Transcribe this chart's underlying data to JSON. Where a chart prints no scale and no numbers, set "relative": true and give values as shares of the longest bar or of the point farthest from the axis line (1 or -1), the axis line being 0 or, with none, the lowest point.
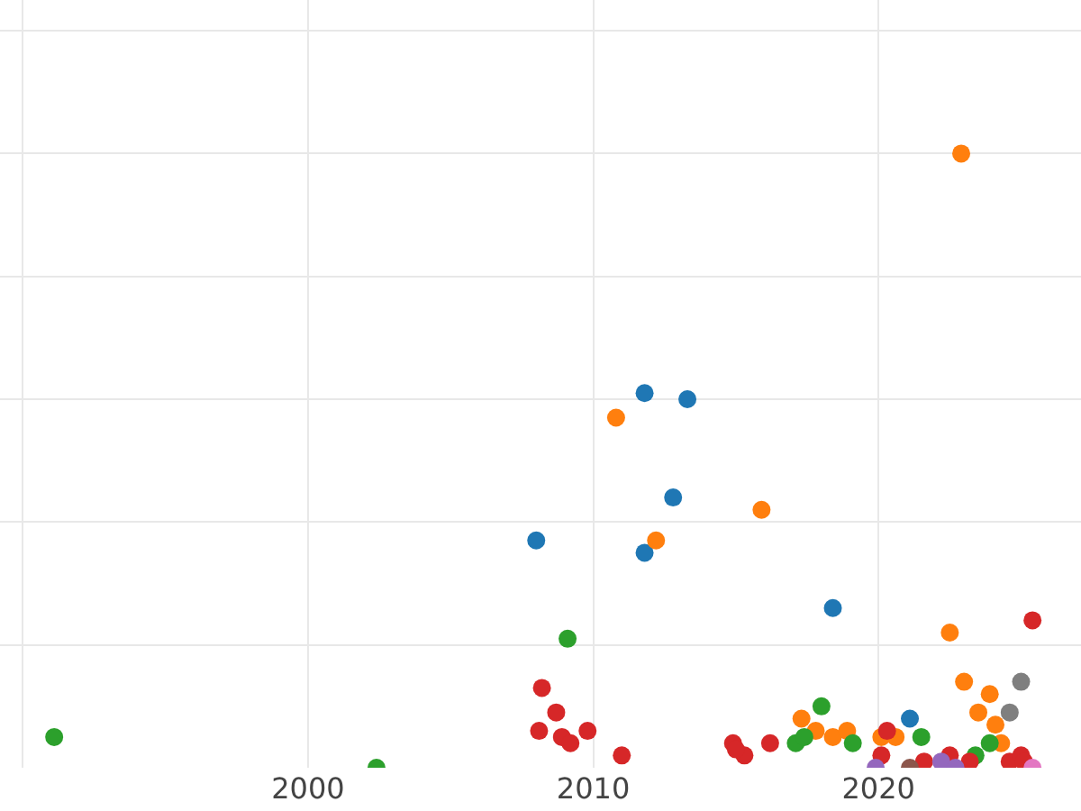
{
  "chart_data": {
    "type": "scatter",
    "relative": true,
    "grid": true,
    "marker": "circle",
    "xlim": [
      1989.2,
      2027.1
    ],
    "xticks": [
      {
        "value": 1990,
        "label": null
      },
      2000,
      2010,
      2020
    ],
    "series": [
      {
        "color": "#1f77b4",
        "x": [
          2008.0,
          2011.8,
          2013.3,
          2012.8,
          2011.8,
          2018.4,
          2021.1
        ],
        "values": [
          0.37,
          0.61,
          0.6,
          0.44,
          0.35,
          0.26,
          0.08
        ]
      },
      {
        "color": "#ff7f0e",
        "x": [
          2022.9,
          2010.8,
          2015.9,
          2012.2,
          2022.5,
          2023.0,
          2023.9,
          2023.5,
          2024.1,
          2017.3,
          2017.8,
          2018.4,
          2018.9,
          2020.1,
          2020.6,
          2024.3
        ],
        "values": [
          1.0,
          0.57,
          0.42,
          0.37,
          0.22,
          0.14,
          0.12,
          0.09,
          0.07,
          0.08,
          0.06,
          0.05,
          0.06,
          0.05,
          0.05,
          0.04
        ]
      },
      {
        "color": "#2ca02c",
        "x": [
          1991.1,
          2002.4,
          2009.1,
          2018.0,
          2017.1,
          2017.4,
          2019.1,
          2021.5,
          2023.9,
          2023.4
        ],
        "values": [
          0.05,
          0.0,
          0.21,
          0.1,
          0.04,
          0.05,
          0.04,
          0.05,
          0.04,
          0.02
        ]
      },
      {
        "color": "#d62728",
        "x": [
          2008.2,
          2008.7,
          2008.1,
          2008.9,
          2009.2,
          2009.8,
          2011.0,
          2025.4,
          2014.9,
          2015.3,
          2015.0,
          2016.2,
          2020.3,
          2020.1,
          2021.6,
          2022.5,
          2023.2,
          2024.6,
          2025.0,
          2025.1
        ],
        "values": [
          0.13,
          0.09,
          0.06,
          0.05,
          0.04,
          0.06,
          0.02,
          0.24,
          0.04,
          0.02,
          0.03,
          0.04,
          0.06,
          0.02,
          0.01,
          0.02,
          0.01,
          0.01,
          0.02,
          0.01
        ]
      },
      {
        "color": "#7f7f7f",
        "x": [
          2025.0,
          2024.6
        ],
        "values": [
          0.14,
          0.09
        ]
      },
      {
        "color": "#9467bd",
        "x": [
          2019.9,
          2022.2,
          2022.7
        ],
        "values": [
          0.0,
          0.01,
          0.0
        ]
      },
      {
        "color": "#8c564b",
        "x": [
          2021.1
        ],
        "values": [
          0.0
        ]
      },
      {
        "color": "#e377c2",
        "x": [
          2025.4
        ],
        "values": [
          0.0
        ]
      }
    ]
  }
}
